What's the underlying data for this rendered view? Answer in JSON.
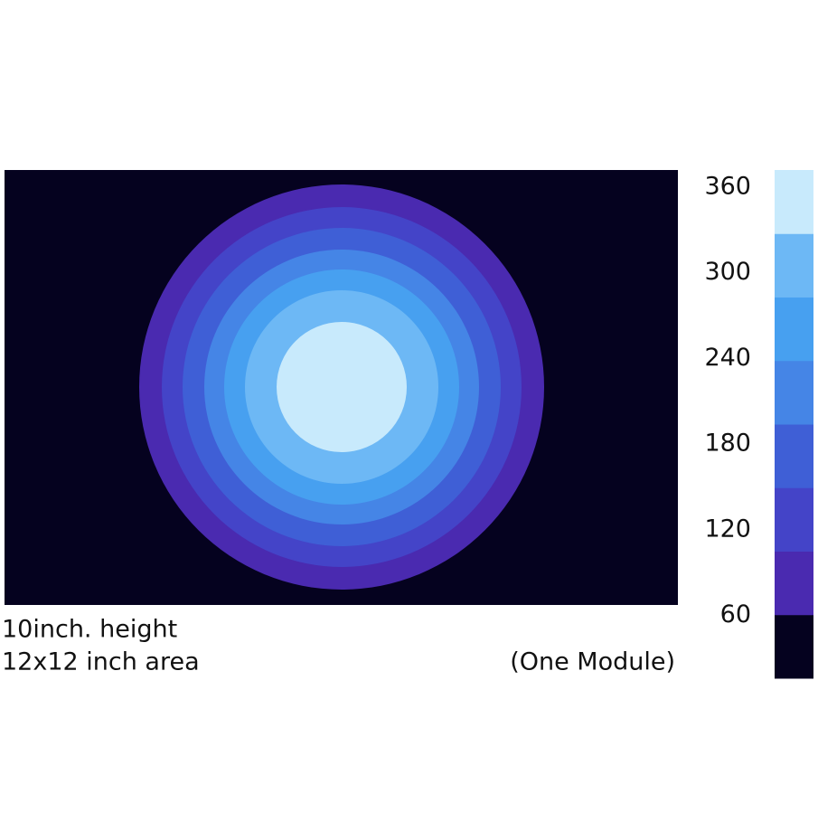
{
  "chart_data": {
    "type": "contour",
    "notes": [
      "10inch. height",
      "12x12 inch area"
    ],
    "caption": "(One Module)",
    "background": "#05021f",
    "ring_colors": [
      "#4a2ab0",
      "#4444c8",
      "#3f5fd6",
      "#4585e6",
      "#47a0f0",
      "#6db8f5",
      "#c8eafc"
    ],
    "colorbar_colors": [
      "#05021f",
      "#4a2ab0",
      "#4444c8",
      "#3f5fd6",
      "#4585e6",
      "#47a0f0",
      "#6db8f5",
      "#c8eafc"
    ],
    "clim": [
      16,
      372
    ],
    "cticks": [
      60,
      120,
      180,
      240,
      300,
      360
    ]
  }
}
